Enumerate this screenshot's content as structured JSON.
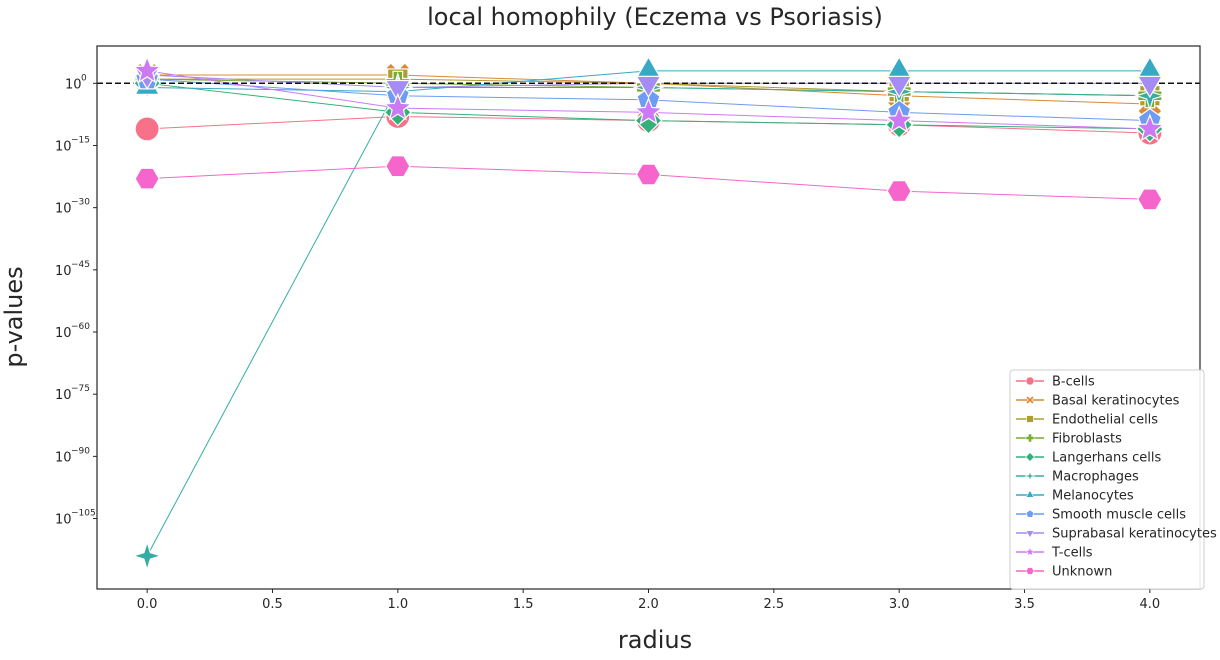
{
  "chart_data": {
    "type": "line",
    "title": "local homophily (Eczema vs Psoriasis)",
    "xlabel": "radius",
    "ylabel": "p-values",
    "yscale": "log",
    "x": [
      0.0,
      1.0,
      2.0,
      3.0,
      4.0
    ],
    "xlim": [
      -0.2,
      4.2
    ],
    "ylim_log10": [
      -122,
      9
    ],
    "x_ticks": [
      0.0,
      0.5,
      1.0,
      1.5,
      2.0,
      2.5,
      3.0,
      3.5,
      4.0
    ],
    "x_tick_labels": [
      "0.0",
      "0.5",
      "1.0",
      "1.5",
      "2.0",
      "2.5",
      "3.0",
      "3.5",
      "4.0"
    ],
    "y_ticks_log10": [
      0,
      -15,
      -30,
      -45,
      -60,
      -75,
      -90,
      -105
    ],
    "y_tick_base": "10",
    "y_tick_exponents": [
      "0",
      "−15",
      "−30",
      "−45",
      "−60",
      "−75",
      "−90",
      "−105"
    ],
    "reference_line_log10": 0,
    "reference_line_style": "dashed",
    "grid": false,
    "legend_position": "lower-right",
    "series": [
      {
        "name": "B-cells",
        "color": "#f77189",
        "marker": "circle",
        "values_log10": [
          -11,
          -8,
          -9,
          -10,
          -12
        ]
      },
      {
        "name": "Basal keratinocytes",
        "color": "#dc8932",
        "marker": "x",
        "values_log10": [
          2,
          2,
          0,
          -3,
          -5
        ]
      },
      {
        "name": "Endothelial cells",
        "color": "#ae9d31",
        "marker": "square",
        "values_log10": [
          1,
          1,
          0,
          -2,
          -3
        ]
      },
      {
        "name": "Fibroblasts",
        "color": "#77ab31",
        "marker": "plus",
        "values_log10": [
          1,
          0,
          -1,
          -2,
          -3
        ]
      },
      {
        "name": "Langerhans cells",
        "color": "#33b07a",
        "marker": "diamond",
        "values_log10": [
          0,
          -7,
          -9,
          -10,
          -11
        ]
      },
      {
        "name": "Macrophages",
        "color": "#36ada4",
        "marker": "star4",
        "values_log10": [
          -114,
          -1,
          -1,
          -2,
          -3
        ]
      },
      {
        "name": "Melanocytes",
        "color": "#38a9c5",
        "marker": "triangle-up",
        "values_log10": [
          -1,
          -2,
          3,
          3,
          3
        ]
      },
      {
        "name": "Smooth muscle cells",
        "color": "#6e9bf4",
        "marker": "pentagon",
        "values_log10": [
          1,
          -3,
          -4,
          -7,
          -9
        ]
      },
      {
        "name": "Suprabasal keratinocytes",
        "color": "#a48cf4",
        "marker": "triangle-down",
        "values_log10": [
          2,
          -1,
          0,
          0,
          0
        ]
      },
      {
        "name": "T-cells",
        "color": "#cc7af4",
        "marker": "star",
        "values_log10": [
          3,
          -6,
          -7,
          -9,
          -11
        ]
      },
      {
        "name": "Unknown",
        "color": "#f565cc",
        "marker": "hexagon",
        "values_log10": [
          -23,
          -20,
          -22,
          -26,
          -28
        ]
      }
    ]
  }
}
